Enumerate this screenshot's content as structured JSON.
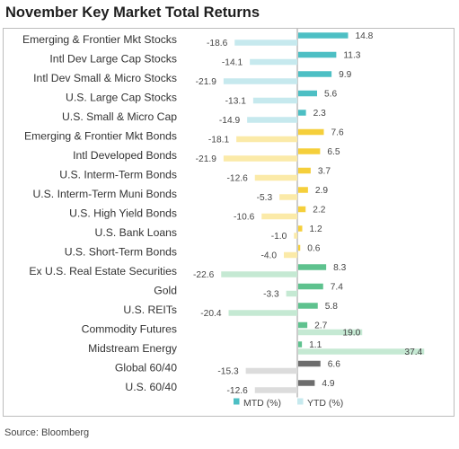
{
  "title": "November Key Market Total Returns",
  "source": "Source: Bloomberg",
  "chart_data": {
    "type": "bar",
    "orientation": "horizontal",
    "grouping": "paired",
    "categories": [
      "Emerging & Frontier Mkt Stocks",
      "Intl Dev Large Cap Stocks",
      "Intl Dev Small & Micro Stocks",
      "U.S. Large Cap Stocks",
      "U.S. Small & Micro Cap",
      "Emerging & Frontier Mkt Bonds",
      "Intl Developed Bonds",
      "U.S. Interm-Term Bonds",
      "U.S. Interm-Term Muni Bonds",
      "U.S. High Yield Bonds",
      "U.S. Bank Loans",
      "U.S. Short-Term Bonds",
      "Ex U.S. Real Estate Securities",
      "Gold",
      "U.S. REITs",
      "Commodity Futures",
      "Midstream Energy",
      "Global 60/40",
      "U.S. 60/40"
    ],
    "series": [
      {
        "name": "MTD (%)",
        "values": [
          14.8,
          11.3,
          9.9,
          5.6,
          2.3,
          7.6,
          6.5,
          3.7,
          2.9,
          2.2,
          1.2,
          0.6,
          8.3,
          7.4,
          5.8,
          2.7,
          1.1,
          6.6,
          4.9
        ]
      },
      {
        "name": "YTD (%)",
        "values": [
          -18.6,
          -14.1,
          -21.9,
          -13.1,
          -14.9,
          -18.1,
          -21.9,
          -12.6,
          -5.3,
          -10.6,
          -1.0,
          -4.0,
          -22.6,
          -3.3,
          -20.4,
          19.0,
          37.4,
          -15.3,
          -12.6
        ]
      }
    ],
    "value_labels": {
      "mtd": [
        "14.8",
        "11.3",
        "9.9",
        "5.6",
        "2.3",
        "7.6",
        "6.5",
        "3.7",
        "2.9",
        "2.2",
        "1.2",
        "0.6",
        "8.3",
        "7.4",
        "5.8",
        "2.7",
        "1.1",
        "6.6",
        "4.9"
      ],
      "ytd": [
        "-18.6",
        "-14.1",
        "-21.9",
        "-13.1",
        "-14.9",
        "-18.1",
        "-21.9",
        "-12.6",
        "-5.3",
        "-10.6",
        "-1.0",
        "-4.0",
        "-22.6",
        "-3.3",
        "-20.4",
        "19.0",
        "37.4",
        "-15.3",
        "-12.6"
      ]
    },
    "group_colors": {
      "stocks": {
        "mtd": "#4dbfc4",
        "ytd": "#c6e9ee",
        "rows": [
          0,
          1,
          2,
          3,
          4
        ]
      },
      "bonds": {
        "mtd": "#f5cf3b",
        "ytd": "#fbeaa8",
        "rows": [
          5,
          6,
          7,
          8,
          9,
          10,
          11
        ]
      },
      "real_assets": {
        "mtd": "#5ec28e",
        "ytd": "#c5e9d3",
        "rows": [
          12,
          13,
          14,
          15,
          16
        ]
      },
      "balanced": {
        "mtd": "#6d6d6d",
        "ytd": "#dcdcdc",
        "rows": [
          17,
          18
        ]
      }
    },
    "xlim": [
      -25,
      40
    ],
    "zero_line": true,
    "grid": false,
    "legend": {
      "placement": "bottom-right",
      "entries": [
        {
          "label": "MTD (%)",
          "color": "#4dbfc4"
        },
        {
          "label": "YTD (%)",
          "color": "#c6e9ee"
        }
      ]
    }
  }
}
